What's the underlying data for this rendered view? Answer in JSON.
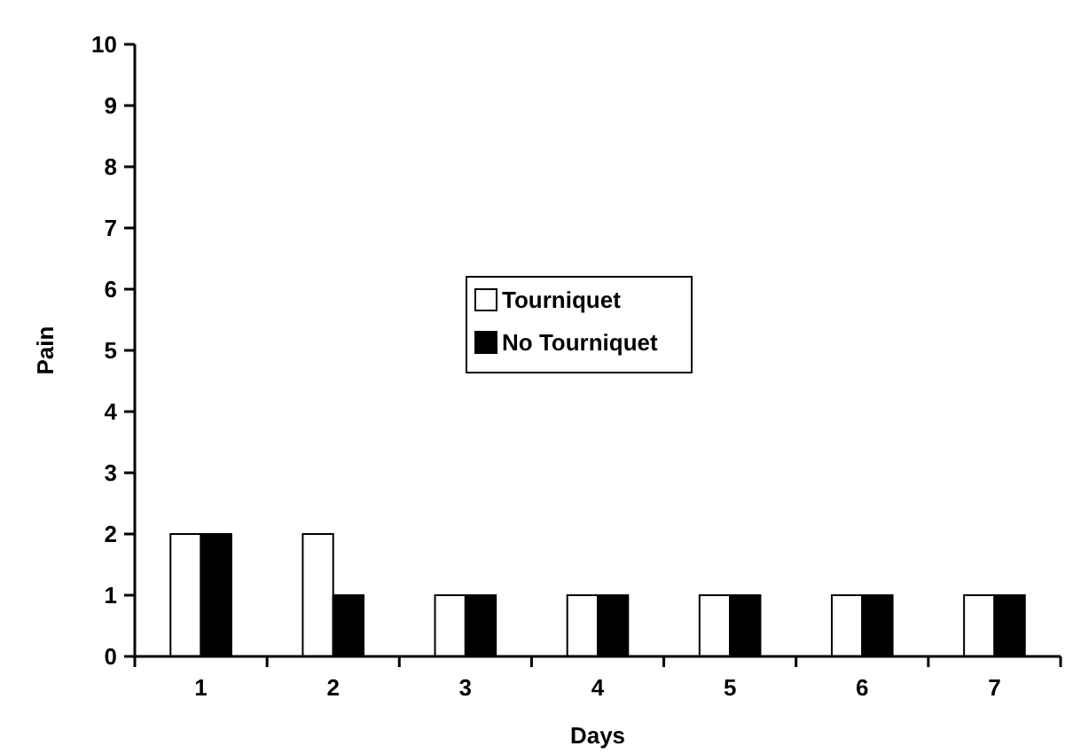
{
  "chart_data": {
    "type": "bar",
    "xlabel": "Days",
    "ylabel": "Pain",
    "categories": [
      "1",
      "2",
      "3",
      "4",
      "5",
      "6",
      "7"
    ],
    "series": [
      {
        "name": "Tourniquet",
        "color": "#ffffff",
        "values": [
          2,
          2,
          1,
          1,
          1,
          1,
          1
        ]
      },
      {
        "name": "No Tourniquet",
        "color": "#000000",
        "values": [
          2,
          1,
          1,
          1,
          1,
          1,
          1
        ]
      }
    ],
    "ylim": [
      0,
      10
    ],
    "yticks": [
      0,
      1,
      2,
      3,
      4,
      5,
      6,
      7,
      8,
      9,
      10
    ],
    "grid": false,
    "legend": "center"
  }
}
